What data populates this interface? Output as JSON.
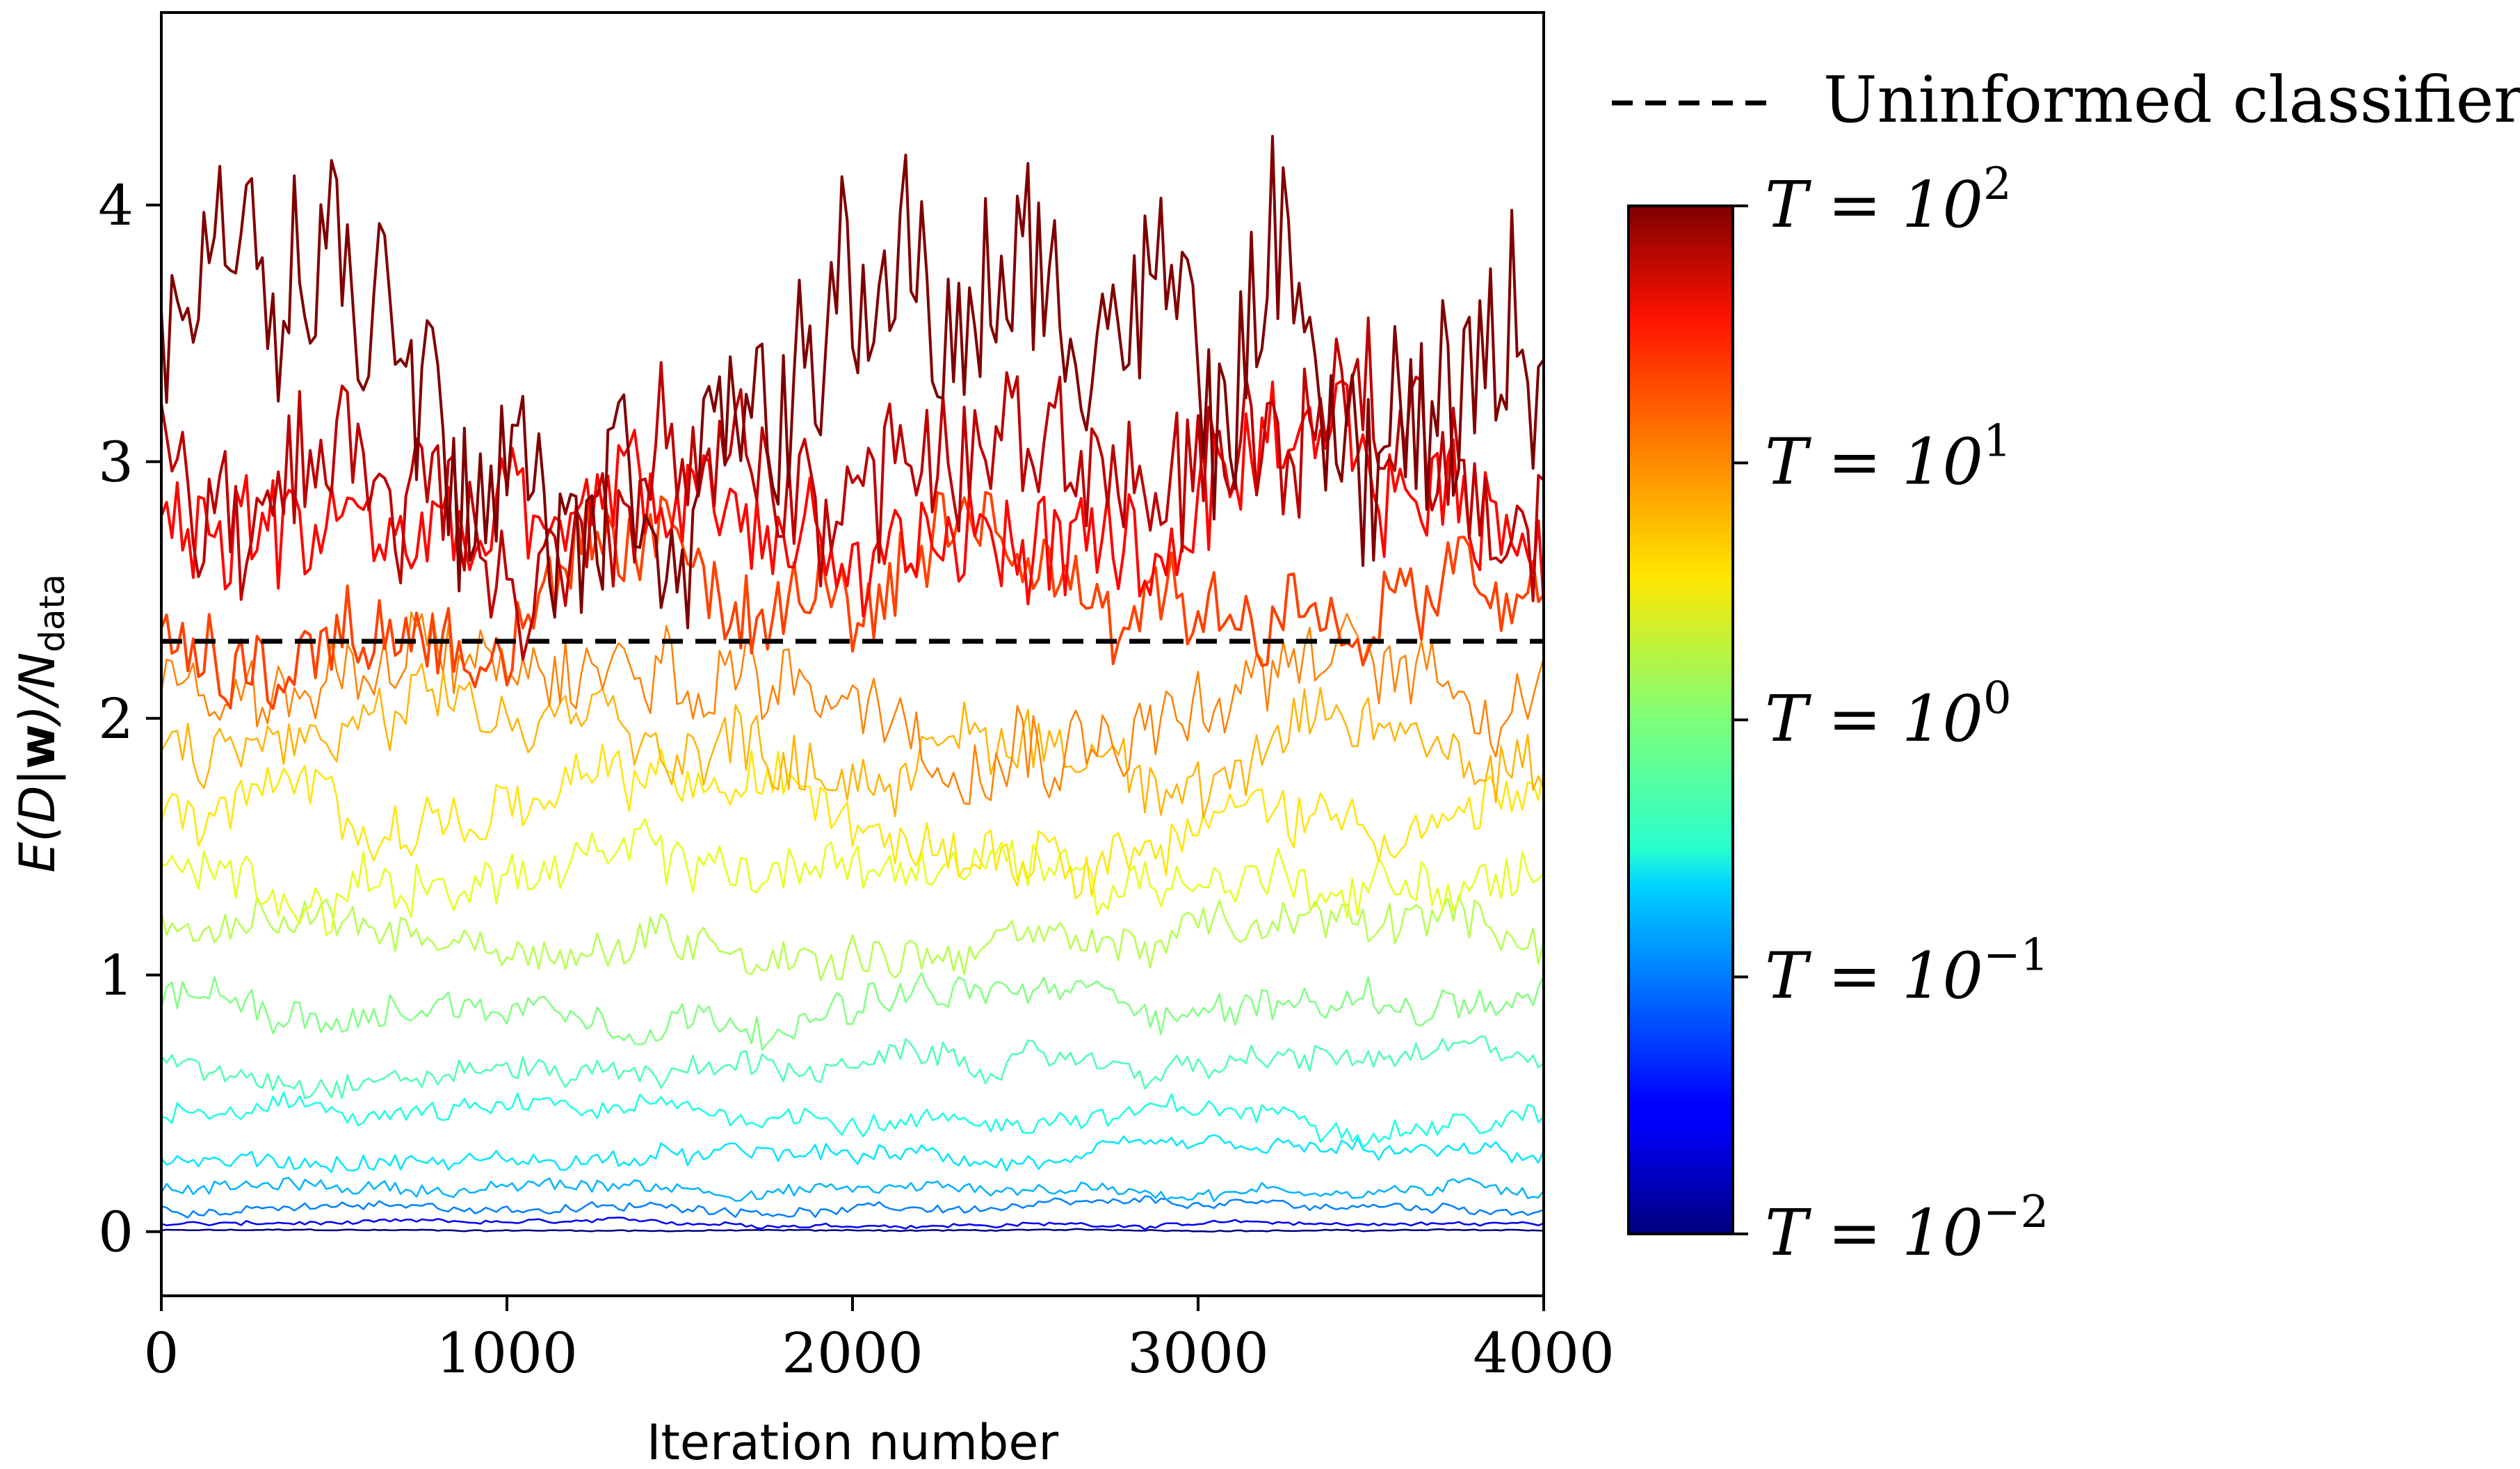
{
  "chart_data": {
    "type": "line",
    "title": "",
    "xlabel": "Iteration number",
    "ylabel_main": "E(D|",
    "ylabel_bold": "w",
    "ylabel_close": ")/N",
    "ylabel_sub": "data",
    "xlim": [
      0,
      4000
    ],
    "ylim": [
      -0.25,
      4.75
    ],
    "x_ticks": [
      {
        "value": 0,
        "label": "0"
      },
      {
        "value": 1000,
        "label": "1000"
      },
      {
        "value": 2000,
        "label": "2000"
      },
      {
        "value": 3000,
        "label": "3000"
      },
      {
        "value": 4000,
        "label": "4000"
      }
    ],
    "y_ticks": [
      {
        "value": 0,
        "label": "0"
      },
      {
        "value": 1,
        "label": "1"
      },
      {
        "value": 2,
        "label": "2"
      },
      {
        "value": 3,
        "label": "3"
      },
      {
        "value": 4,
        "label": "4"
      }
    ],
    "reference_line": {
      "name": "Uninformed classifier",
      "y": 2.3,
      "color": "#000000",
      "style": "dashed"
    },
    "legend": {
      "position": "top-right, outside",
      "entries": [
        "Uninformed classifier"
      ]
    },
    "colorbar": {
      "colormap": "jet",
      "scale": "log",
      "range_exponents": [
        -2,
        2
      ],
      "ticks": [
        {
          "exponent": 2,
          "label_base": "T = 10",
          "label_exp": "2"
        },
        {
          "exponent": 1,
          "label_base": "T = 10",
          "label_exp": "1"
        },
        {
          "exponent": 0,
          "label_base": "T = 10",
          "label_exp": "0"
        },
        {
          "exponent": -1,
          "label_base": "T = 10",
          "label_exp": "−1"
        },
        {
          "exponent": -2,
          "label_base": "T = 10",
          "label_exp": "−2"
        }
      ]
    },
    "series_description": "Energy traces of replicas at temperatures log-spaced from T=10^-2 to T=10^2, colored by temperature",
    "series": [
      {
        "name": "T=10^2",
        "t_frac": 1.0,
        "mean": 3.55,
        "spread": 0.5
      },
      {
        "name": "T=10^1.75",
        "t_frac": 0.94,
        "mean": 3.0,
        "spread": 0.35
      },
      {
        "name": "T=10^1.5",
        "t_frac": 0.87,
        "mean": 2.7,
        "spread": 0.28
      },
      {
        "name": "T=10^1.25",
        "t_frac": 0.81,
        "mean": 2.45,
        "spread": 0.22
      },
      {
        "name": "T=10^1",
        "t_frac": 0.75,
        "mean": 2.15,
        "spread": 0.2
      },
      {
        "name": "T=10^0.8",
        "t_frac": 0.7,
        "mean": 1.9,
        "spread": 0.15
      },
      {
        "name": "T=10^0.6",
        "t_frac": 0.65,
        "mean": 1.65,
        "spread": 0.13
      },
      {
        "name": "T=10^0.4",
        "t_frac": 0.6,
        "mean": 1.4,
        "spread": 0.12
      },
      {
        "name": "T=10^0.2",
        "t_frac": 0.55,
        "mean": 1.15,
        "spread": 0.1
      },
      {
        "name": "T=10^0",
        "t_frac": 0.5,
        "mean": 0.9,
        "spread": 0.08
      },
      {
        "name": "T=10^-0.2",
        "t_frac": 0.45,
        "mean": 0.65,
        "spread": 0.06
      },
      {
        "name": "T=10^-0.4",
        "t_frac": 0.4,
        "mean": 0.45,
        "spread": 0.05
      },
      {
        "name": "T=10^-0.6",
        "t_frac": 0.35,
        "mean": 0.28,
        "spread": 0.04
      },
      {
        "name": "T=10^-0.8",
        "t_frac": 0.3,
        "mean": 0.17,
        "spread": 0.03
      },
      {
        "name": "T=10^-1",
        "t_frac": 0.25,
        "mean": 0.09,
        "spread": 0.02
      },
      {
        "name": "T=10^-1.5",
        "t_frac": 0.12,
        "mean": 0.03,
        "spread": 0.01
      },
      {
        "name": "T=10^-2",
        "t_frac": 0.0,
        "mean": 0.005,
        "spread": 0.003
      }
    ]
  }
}
